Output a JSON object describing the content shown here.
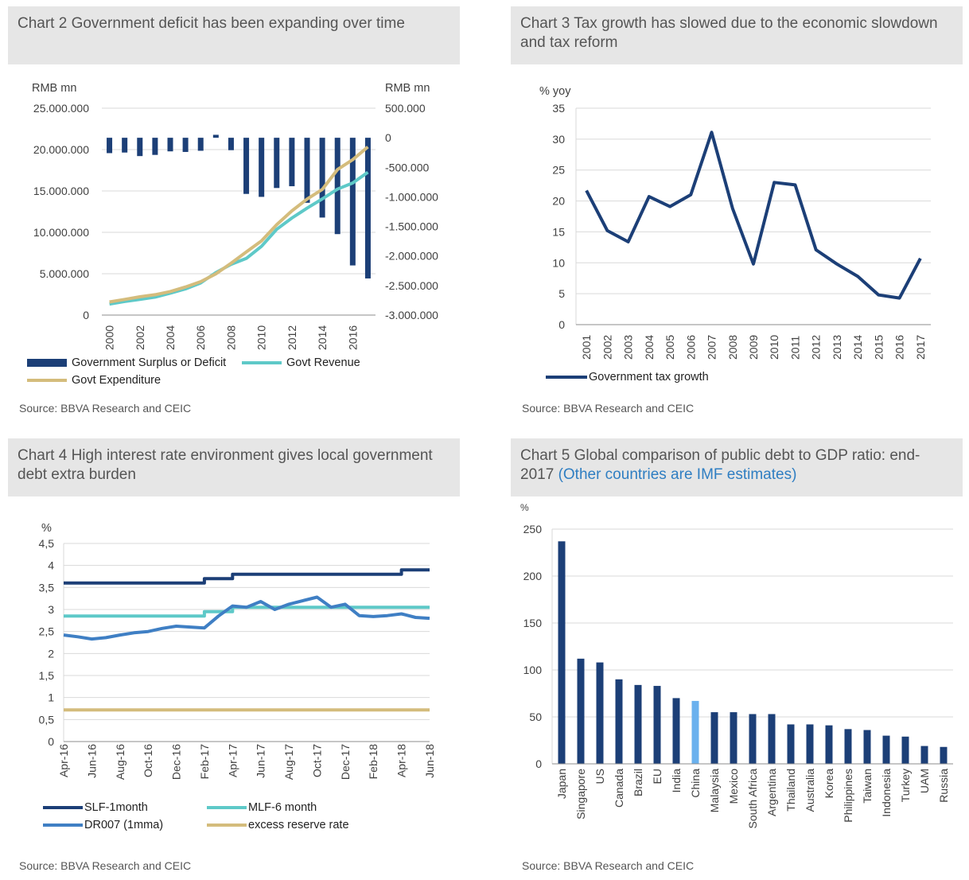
{
  "chart2": {
    "title": "Chart 2 Government deficit has been expanding over time",
    "source": "Source: BBVA Research and CEIC",
    "legend": [
      "Government Surplus or Deficit",
      "Govt Revenue",
      "Govt Expenditure"
    ],
    "colors": {
      "deficit": "#1c3f77",
      "revenue": "#5ec9c8",
      "expenditure": "#d4bc7c"
    },
    "chart_data": {
      "type": "bar",
      "left_unit": "RMB mn",
      "right_unit": "RMB mn",
      "left_ticks": [
        "25.000.000",
        "20.000.000",
        "15.000.000",
        "10.000.000",
        "5.000.000",
        "0"
      ],
      "right_ticks": [
        "500.000",
        "0",
        "-500.000",
        "-1.000.000",
        "-1.500.000",
        "-2.000.000",
        "-2.500.000",
        "-3.000.000"
      ],
      "ylim_left": [
        0,
        25000000
      ],
      "ylim_right": [
        -3000000,
        500000
      ],
      "x": [
        2000,
        2001,
        2002,
        2003,
        2004,
        2005,
        2006,
        2007,
        2008,
        2009,
        2010,
        2011,
        2012,
        2013,
        2014,
        2015,
        2016,
        2017
      ],
      "x_tick_labels": [
        "2000",
        "2002",
        "2004",
        "2006",
        "2008",
        "2010",
        "2012",
        "2014",
        "2016"
      ],
      "series": [
        {
          "name": "Government Surplus or Deficit",
          "axis": "right",
          "kind": "bar",
          "values": [
            -260000,
            -250000,
            -310000,
            -290000,
            -230000,
            -240000,
            -220000,
            50000,
            -210000,
            -950000,
            -1000000,
            -850000,
            -820000,
            -1100000,
            -1350000,
            -1630000,
            -2160000,
            -2380000
          ]
        },
        {
          "name": "Govt Revenue",
          "axis": "left",
          "kind": "line",
          "values": [
            1340000,
            1640000,
            1890000,
            2170000,
            2640000,
            3160000,
            3880000,
            5130000,
            6130000,
            6850000,
            8310000,
            10370000,
            11730000,
            12920000,
            14040000,
            15220000,
            15960000,
            17260000
          ]
        },
        {
          "name": "Govt Expenditure",
          "axis": "left",
          "kind": "line",
          "values": [
            1590000,
            1890000,
            2210000,
            2460000,
            2850000,
            3390000,
            4040000,
            4980000,
            6260000,
            7630000,
            8970000,
            10920000,
            12600000,
            14020000,
            15180000,
            17590000,
            18780000,
            20330000
          ]
        }
      ]
    }
  },
  "chart3": {
    "title": "Chart 3 Tax growth has slowed due to the economic slowdown and tax reform",
    "source": "Source: BBVA Research and CEIC",
    "legend": [
      "Government tax growth"
    ],
    "colors": {
      "line": "#1c3f77"
    },
    "chart_data": {
      "type": "line",
      "ylabel": "% yoy",
      "ylim": [
        0,
        35
      ],
      "y_ticks": [
        "35",
        "30",
        "25",
        "20",
        "15",
        "10",
        "5",
        "0"
      ],
      "categories": [
        "2001",
        "2002",
        "2003",
        "2004",
        "2005",
        "2006",
        "2007",
        "2008",
        "2009",
        "2010",
        "2011",
        "2012",
        "2013",
        "2014",
        "2015",
        "2016",
        "2017"
      ],
      "series": [
        {
          "name": "Government tax growth",
          "values": [
            21.7,
            15.2,
            13.4,
            20.7,
            19.1,
            21.0,
            31.1,
            18.8,
            9.8,
            23.0,
            22.6,
            12.1,
            9.8,
            7.8,
            4.8,
            4.3,
            10.7
          ]
        }
      ]
    }
  },
  "chart4": {
    "title": "Chart 4 High interest rate environment gives local government debt extra burden",
    "source": "Source: BBVA Research and CEIC",
    "legend": [
      "SLF-1month",
      "MLF-6 month",
      "DR007 (1mma)",
      "excess reserve rate"
    ],
    "colors": {
      "slf": "#1c3f77",
      "mlf": "#5ec9c8",
      "dr007": "#3f7fc4",
      "excess": "#d4bc7c"
    },
    "chart_data": {
      "type": "line",
      "ylabel": "%",
      "ylim": [
        0,
        4.5
      ],
      "y_ticks": [
        "4,5",
        "4",
        "3,5",
        "3",
        "2,5",
        "2",
        "1,5",
        "1",
        "0,5",
        "0"
      ],
      "x_tick_labels": [
        "Apr-16",
        "Jun-16",
        "Aug-16",
        "Oct-16",
        "Dec-16",
        "Feb-17",
        "Apr-17",
        "Jun-17",
        "Aug-17",
        "Oct-17",
        "Dec-17",
        "Feb-18",
        "Apr-18",
        "Jun-18"
      ],
      "months": [
        "Apr-16",
        "May-16",
        "Jun-16",
        "Jul-16",
        "Aug-16",
        "Sep-16",
        "Oct-16",
        "Nov-16",
        "Dec-16",
        "Jan-17",
        "Feb-17",
        "Mar-17",
        "Apr-17",
        "May-17",
        "Jun-17",
        "Jul-17",
        "Aug-17",
        "Sep-17",
        "Oct-17",
        "Nov-17",
        "Dec-17",
        "Jan-18",
        "Feb-18",
        "Mar-18",
        "Apr-18",
        "May-18",
        "Jun-18"
      ],
      "series": [
        {
          "name": "SLF-1month",
          "values": [
            3.6,
            3.6,
            3.6,
            3.6,
            3.6,
            3.6,
            3.6,
            3.6,
            3.6,
            3.6,
            3.7,
            3.7,
            3.8,
            3.8,
            3.8,
            3.8,
            3.8,
            3.8,
            3.8,
            3.8,
            3.8,
            3.8,
            3.8,
            3.8,
            3.9,
            3.9,
            3.9
          ]
        },
        {
          "name": "MLF-6 month",
          "values": [
            2.85,
            2.85,
            2.85,
            2.85,
            2.85,
            2.85,
            2.85,
            2.85,
            2.85,
            2.85,
            2.95,
            2.95,
            3.05,
            3.05,
            3.05,
            3.05,
            3.05,
            3.05,
            3.05,
            3.05,
            3.05,
            3.05,
            3.05,
            3.05,
            3.05,
            3.05,
            3.05
          ]
        },
        {
          "name": "DR007 (1mma)",
          "values": [
            2.42,
            2.38,
            2.33,
            2.36,
            2.42,
            2.47,
            2.5,
            2.57,
            2.62,
            2.6,
            2.58,
            2.85,
            3.08,
            3.05,
            3.18,
            3.0,
            3.12,
            3.2,
            3.28,
            3.05,
            3.12,
            2.86,
            2.84,
            2.86,
            2.9,
            2.82,
            2.8
          ]
        },
        {
          "name": "excess reserve rate",
          "values": [
            0.72,
            0.72,
            0.72,
            0.72,
            0.72,
            0.72,
            0.72,
            0.72,
            0.72,
            0.72,
            0.72,
            0.72,
            0.72,
            0.72,
            0.72,
            0.72,
            0.72,
            0.72,
            0.72,
            0.72,
            0.72,
            0.72,
            0.72,
            0.72,
            0.72,
            0.72,
            0.72
          ]
        }
      ]
    }
  },
  "chart5": {
    "title_main": "Chart 5 Global comparison of public debt to GDP ratio: end-2017",
    "title_note": "(Other countries are IMF estimates)",
    "source": "Source: BBVA Research and CEIC",
    "colors": {
      "bar": "#1c3f77",
      "highlight": "#6ab1ee"
    },
    "chart_data": {
      "type": "bar",
      "ylabel": "%",
      "ylim": [
        0,
        250
      ],
      "y_ticks": [
        "250",
        "200",
        "150",
        "100",
        "50",
        "0"
      ],
      "categories": [
        "Japan",
        "Singapore",
        "US",
        "Canada",
        "Brazil",
        "EU",
        "India",
        "China",
        "Malaysia",
        "Mexico",
        "South Africa",
        "Argentina",
        "Thailand",
        "Australia",
        "Korea",
        "Philippines",
        "Taiwan",
        "Indonesia",
        "Turkey",
        "UAM",
        "Russia"
      ],
      "values": [
        237,
        112,
        108,
        90,
        84,
        83,
        70,
        67,
        55,
        55,
        53,
        53,
        42,
        42,
        41,
        37,
        36,
        30,
        29,
        19,
        18
      ],
      "highlight": "China"
    }
  }
}
